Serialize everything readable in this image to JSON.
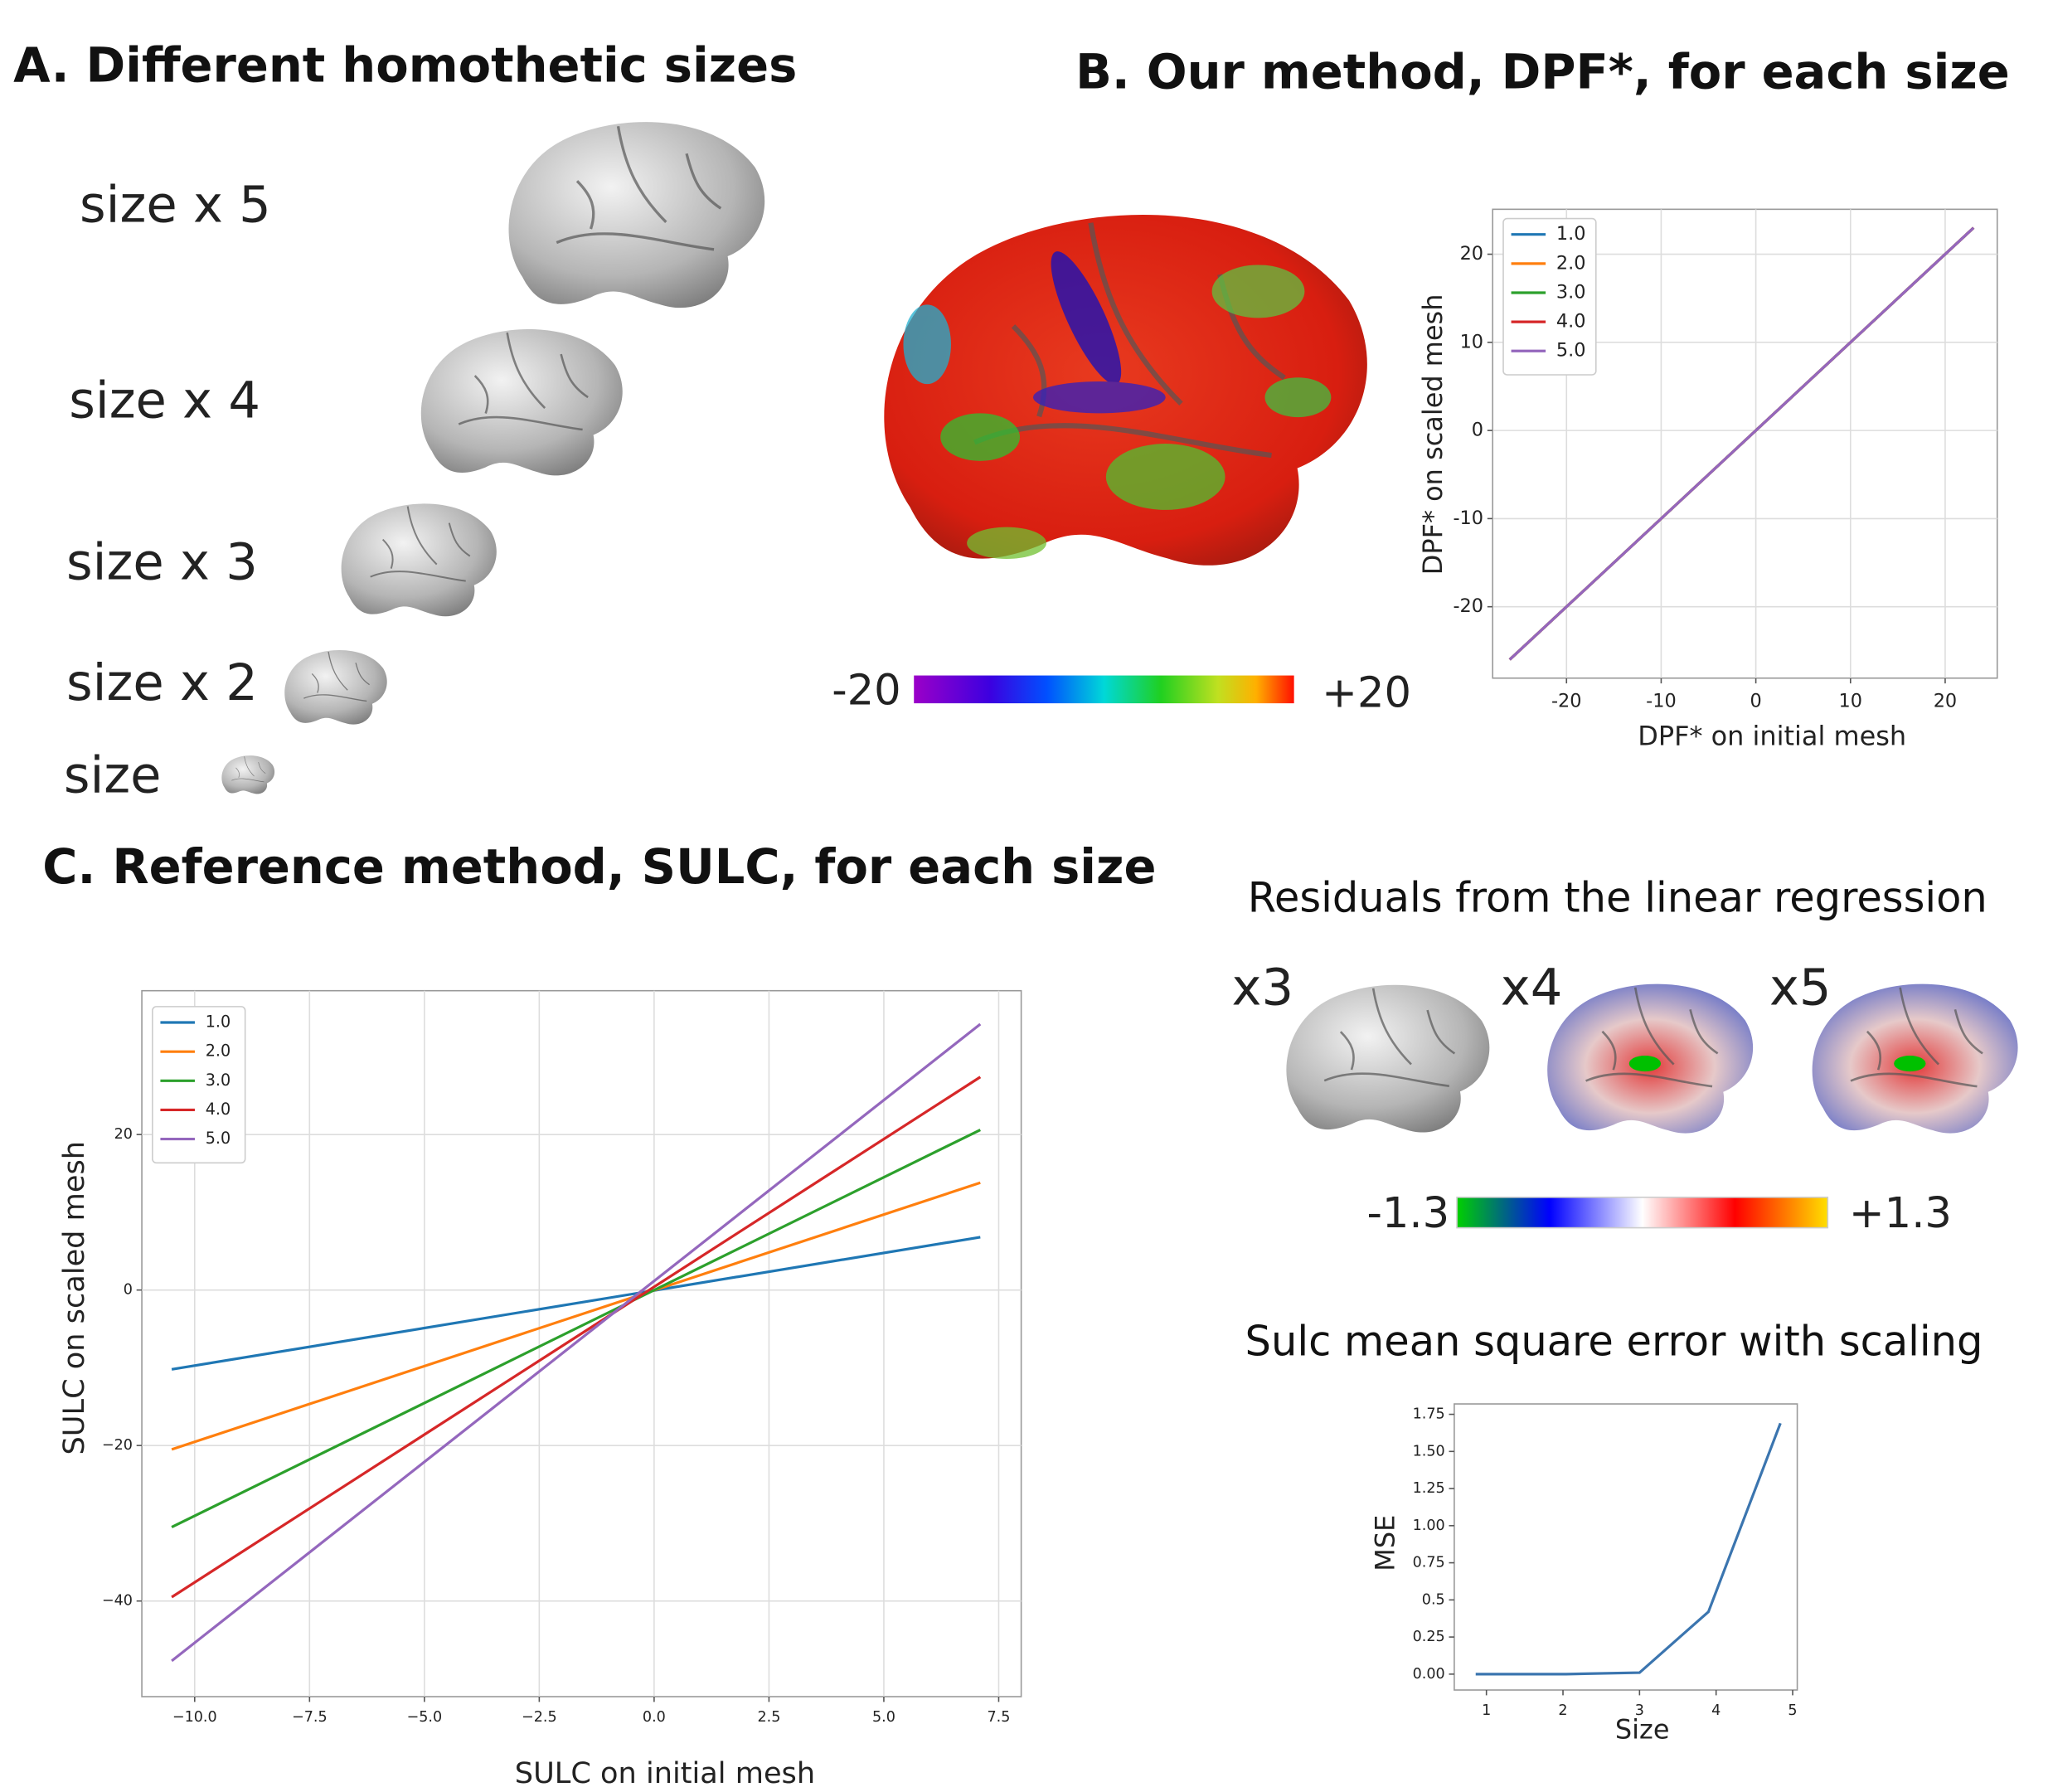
{
  "panels": {
    "a_title": "A. Different homothetic sizes",
    "b_title": "B. Our method, DPF*, for each size",
    "c_title": "C. Reference method, SULC, for each size",
    "size_labels": [
      {
        "text": "size x 5",
        "color": "#9467bd"
      },
      {
        "text": "size x 4",
        "color": "#d62728"
      },
      {
        "text": "size x 3",
        "color": "#2ca02c"
      },
      {
        "text": "size x 2",
        "color": "#ff7f0e"
      },
      {
        "text": "size",
        "color": "#1f77b4"
      }
    ],
    "dpf_colorbar": {
      "min_label": "-20",
      "max_label": "+20"
    },
    "residuals_title": "Residuals from the linear regression",
    "residual_labels": [
      {
        "text": "x3",
        "color": "#2ca02c"
      },
      {
        "text": "x4",
        "color": "#d62728"
      },
      {
        "text": "x5",
        "color": "#9467bd"
      }
    ],
    "residual_colorbar": {
      "min_label": "-1.3",
      "max_label": "+1.3"
    },
    "mse_title": "Sulc mean square error with scaling"
  },
  "chart_data": [
    {
      "type": "line",
      "xlabel": "DPF* on initial mesh",
      "ylabel": "DPF* on scaled mesh",
      "x": [
        -26,
        23
      ],
      "series": [
        {
          "name": "1.0",
          "color": "#1f77b4",
          "values": [
            -26,
            23
          ]
        },
        {
          "name": "2.0",
          "color": "#ff7f0e",
          "values": [
            -26,
            23
          ]
        },
        {
          "name": "3.0",
          "color": "#2ca02c",
          "values": [
            -26,
            23
          ]
        },
        {
          "name": "4.0",
          "color": "#d62728",
          "values": [
            -26,
            23
          ]
        },
        {
          "name": "5.0",
          "color": "#9467bd",
          "values": [
            -26,
            23
          ]
        }
      ],
      "xlim": [
        -27.8,
        25.5
      ],
      "ylim": [
        -28.1,
        25.1
      ],
      "xticks": [
        {
          "value": -20,
          "label": "-20"
        },
        {
          "value": -10,
          "label": "-10"
        },
        0,
        10,
        20
      ],
      "yticks": [
        {
          "value": -20,
          "label": "-20"
        },
        {
          "value": -10,
          "label": "-10"
        },
        0,
        10,
        20
      ],
      "grid": true,
      "legend": "upper left"
    },
    {
      "type": "line",
      "xlabel": "SULC on initial mesh",
      "ylabel": "SULC on scaled mesh",
      "x": [
        -10.5,
        7.1
      ],
      "series": [
        {
          "name": "1.0",
          "color": "#1f77b4",
          "values": [
            -10.2,
            6.8
          ]
        },
        {
          "name": "2.0",
          "color": "#ff7f0e",
          "values": [
            -20.5,
            13.8
          ]
        },
        {
          "name": "3.0",
          "color": "#2ca02c",
          "values": [
            -30.5,
            20.6
          ]
        },
        {
          "name": "4.0",
          "color": "#d62728",
          "values": [
            -39.5,
            27.4
          ]
        },
        {
          "name": "5.0",
          "color": "#9467bd",
          "values": [
            -47.7,
            34.2
          ]
        }
      ],
      "xlim": [
        -11.15,
        7.99
      ],
      "ylim": [
        -52.3,
        38.5
      ],
      "xticks": [
        {
          "value": -10,
          "label": "−10.0"
        },
        {
          "value": -7.5,
          "label": "−7.5"
        },
        {
          "value": -5,
          "label": "−5.0"
        },
        {
          "value": -2.5,
          "label": "−2.5"
        },
        {
          "value": 0,
          "label": "0.0"
        },
        2.5,
        {
          "value": 5,
          "label": "5.0"
        },
        7.5
      ],
      "yticks": [
        {
          "value": -40,
          "label": "−40"
        },
        {
          "value": -20,
          "label": "−20"
        },
        0,
        20
      ],
      "grid": true,
      "legend": "upper left"
    },
    {
      "type": "line",
      "xlabel": "Size",
      "ylabel": "MSE",
      "x": [
        0.86,
        2.04,
        3.0,
        3.9,
        4.84
      ],
      "series": [
        {
          "name": null,
          "color": "#3b75af",
          "values": [
            0,
            0,
            0.01,
            0.42,
            1.69
          ]
        }
      ],
      "xlim": [
        0.58,
        5.06
      ],
      "ylim": [
        -0.107,
        1.82
      ],
      "xticks": [
        1,
        2,
        3,
        4,
        5
      ],
      "yticks": [
        {
          "value": 0,
          "label": "0.00"
        },
        0.25,
        {
          "value": 0.5,
          "label": "0.5"
        },
        0.75,
        {
          "value": 1,
          "label": "1.00"
        },
        1.25,
        {
          "value": 1.5,
          "label": "1.50"
        },
        1.75
      ],
      "grid": false
    }
  ]
}
